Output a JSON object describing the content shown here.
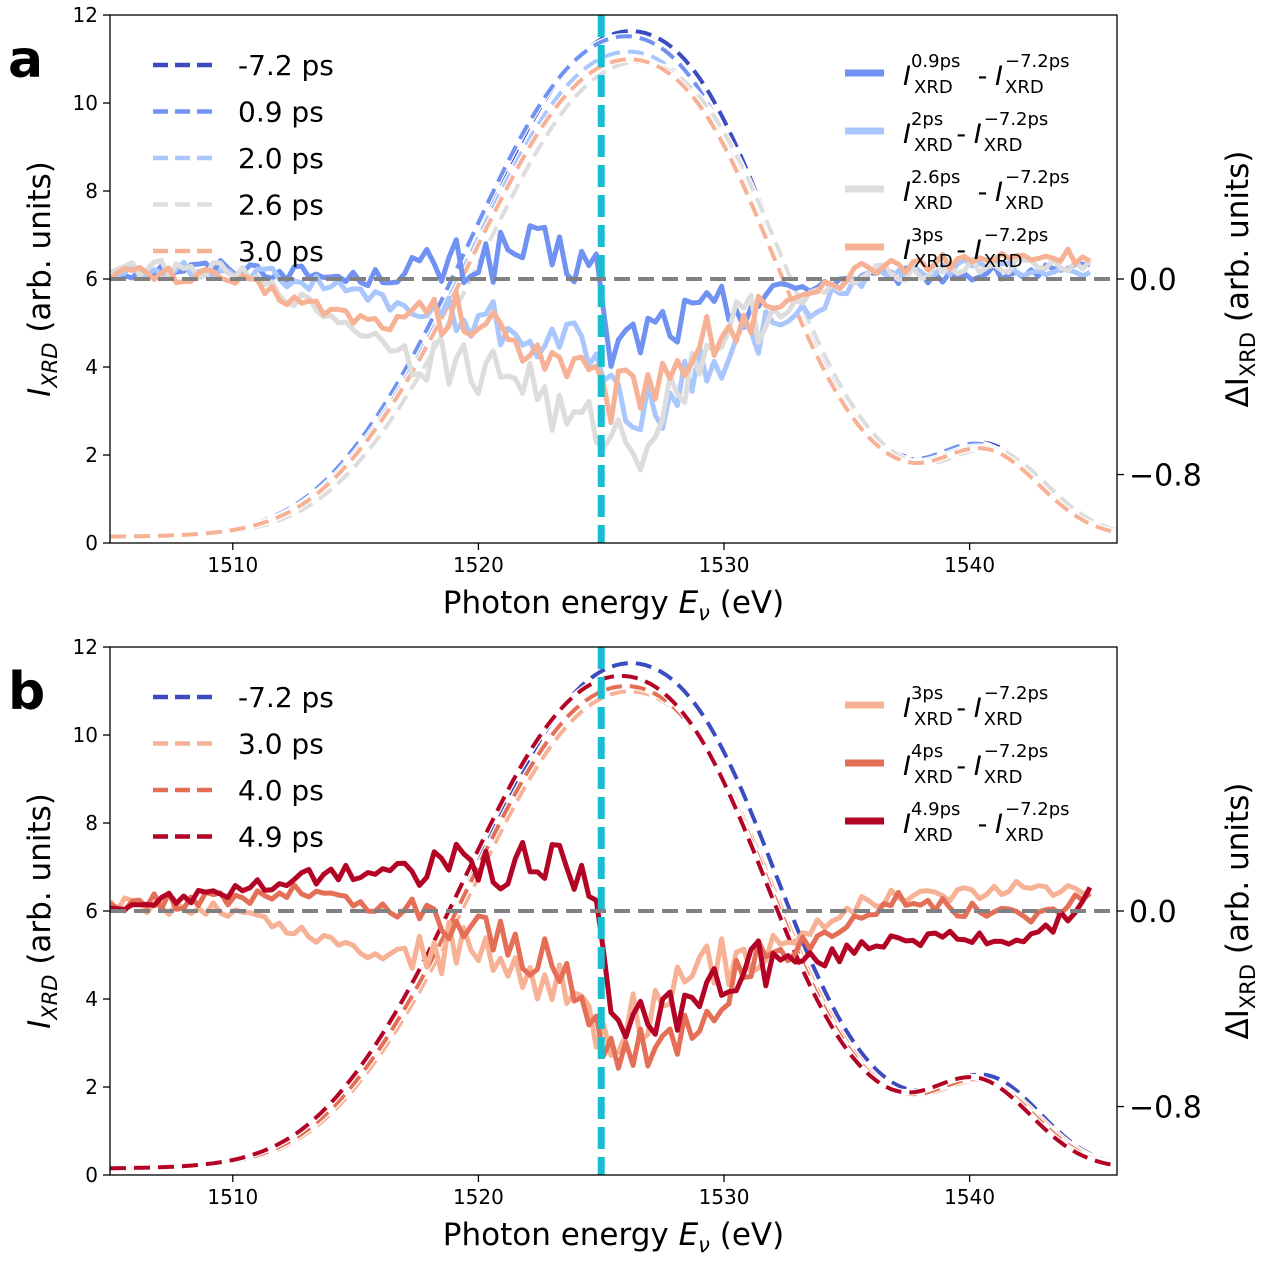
{
  "figure": {
    "colors": {
      "c72": "#3b4cc0",
      "c09": "#6f92f3",
      "c20": "#aac7fd",
      "c26": "#dddddd",
      "c30": "#f7b194",
      "c40": "#e46e56",
      "c49": "#b40426",
      "marker": "#17becf",
      "zero": "#808080"
    }
  },
  "chart_data": [
    {
      "type": "line",
      "panel_label": "a",
      "xlabel": "Photon energy Eν (eV)",
      "xlabel_main": "Photon energy ",
      "xlabel_var": "E",
      "xlabel_sub": "ν",
      "xlabel_unit": " (eV)",
      "ylabel": "IXRD (arb. units)",
      "ylabel_var": "I",
      "ylabel_sub": "XRD",
      "ylabel_unit": " (arb. units)",
      "y2label": "ΔIXRD (arb. units)",
      "y2label_var": "ΔI",
      "y2label_sub": "XRD",
      "y2label_unit": " (arb. units)",
      "xlim": [
        1505,
        1546
      ],
      "ylim": [
        0,
        12
      ],
      "y2lim": [
        -1.08,
        1.08
      ],
      "xticks": [
        1510,
        1520,
        1530,
        1540
      ],
      "xtick_labels": [
        "1510",
        "1520",
        "1530",
        "1540"
      ],
      "yticks": [
        0,
        2,
        4,
        6,
        8,
        10,
        12
      ],
      "ytick_labels": [
        "0",
        "2",
        "4",
        "6",
        "8",
        "10",
        "12"
      ],
      "y2ticks": [
        0.0,
        -0.8
      ],
      "y2tick_labels": [
        "0.0",
        "−0.8"
      ],
      "vline_x": 1525,
      "hline_y2": 0.0,
      "legend_left_position": "upper-left",
      "legend_right_position": "upper-right",
      "spectra": [
        {
          "name": "-7.2 ps",
          "label": "-7.2 ps",
          "color_key": "c72",
          "shift": 0.2,
          "scale": 1.0
        },
        {
          "name": "0.9 ps",
          "label": "0.9 ps",
          "color_key": "c09",
          "shift": 0.0,
          "scale": 0.99
        },
        {
          "name": "2.0 ps",
          "label": "2.0 ps",
          "color_key": "c20",
          "shift": 0.1,
          "scale": 0.96
        },
        {
          "name": "2.6 ps",
          "label": "2.6 ps",
          "color_key": "c26",
          "shift": 0.5,
          "scale": 0.94
        },
        {
          "name": "3.0 ps",
          "label": "3.0 ps",
          "color_key": "c30",
          "shift": 0.15,
          "scale": 0.945
        }
      ],
      "differences": [
        {
          "name": "0.9ps - -7.2ps",
          "sup1": "0.9ps",
          "color_key": "c09",
          "x": [
            1505,
            1510,
            1515,
            1518,
            1522,
            1524.8,
            1525.2,
            1527,
            1529,
            1532,
            1535,
            1540,
            1545
          ],
          "y": [
            0.03,
            0.05,
            0.0,
            0.03,
            0.12,
            0.05,
            -0.3,
            -0.2,
            -0.15,
            -0.05,
            0.0,
            0.02,
            0.03
          ]
        },
        {
          "name": "2ps - -7.2ps",
          "sup1": "2ps",
          "color_key": "c20",
          "x": [
            1505,
            1510,
            1515,
            1518,
            1521,
            1524.8,
            1525.2,
            1527,
            1530,
            1533,
            1536,
            1540,
            1545
          ],
          "y": [
            0.03,
            0.04,
            -0.05,
            -0.15,
            -0.2,
            -0.3,
            -0.45,
            -0.55,
            -0.3,
            -0.15,
            0.02,
            0.05,
            0.04
          ]
        },
        {
          "name": "2.6ps - -7.2ps",
          "sup1": "2.6ps",
          "color_key": "c26",
          "x": [
            1505,
            1510,
            1513,
            1516,
            1519,
            1522,
            1523.5,
            1525,
            1526.5,
            1528,
            1530,
            1533,
            1536,
            1540,
            1545
          ],
          "y": [
            0.05,
            0.03,
            -0.1,
            -0.25,
            -0.35,
            -0.4,
            -0.6,
            -0.6,
            -0.7,
            -0.45,
            -0.2,
            -0.1,
            0.02,
            0.05,
            0.06
          ]
        },
        {
          "name": "3ps - -7.2ps",
          "sup1": "3ps",
          "color_key": "c30",
          "x": [
            1505,
            1510,
            1513,
            1516,
            1519,
            1522,
            1524,
            1525.2,
            1527,
            1530,
            1533,
            1536,
            1540,
            1545
          ],
          "y": [
            0.03,
            0.0,
            -0.1,
            -0.18,
            -0.15,
            -0.25,
            -0.35,
            -0.5,
            -0.4,
            -0.2,
            -0.1,
            0.05,
            0.08,
            0.1
          ]
        }
      ],
      "legend_left": [
        "-7.2 ps",
        "0.9 ps",
        "2.0 ps",
        "2.6 ps",
        "3.0 ps"
      ],
      "legend_right_sup2": "−7.2ps",
      "legend_right_sub": "XRD",
      "legend_right_mid": " - "
    },
    {
      "type": "line",
      "panel_label": "b",
      "xlabel": "Photon energy Eν (eV)",
      "xlabel_main": "Photon energy ",
      "xlabel_var": "E",
      "xlabel_sub": "ν",
      "xlabel_unit": " (eV)",
      "ylabel": "IXRD (arb. units)",
      "ylabel_var": "I",
      "ylabel_sub": "XRD",
      "ylabel_unit": " (arb. units)",
      "y2label": "ΔIXRD (arb. units)",
      "y2label_var": "ΔI",
      "y2label_sub": "XRD",
      "y2label_unit": " (arb. units)",
      "xlim": [
        1505,
        1546
      ],
      "ylim": [
        0,
        12
      ],
      "y2lim": [
        -1.08,
        1.08
      ],
      "xticks": [
        1510,
        1520,
        1530,
        1540
      ],
      "xtick_labels": [
        "1510",
        "1520",
        "1530",
        "1540"
      ],
      "yticks": [
        0,
        2,
        4,
        6,
        8,
        10,
        12
      ],
      "ytick_labels": [
        "0",
        "2",
        "4",
        "6",
        "8",
        "10",
        "12"
      ],
      "y2ticks": [
        0.0,
        -0.8
      ],
      "y2tick_labels": [
        "0.0",
        "−0.8"
      ],
      "vline_x": 1525,
      "hline_y2": 0.0,
      "legend_left_position": "upper-left",
      "legend_right_position": "upper-right",
      "spectra": [
        {
          "name": "-7.2 ps",
          "label": "-7.2 ps",
          "color_key": "c72",
          "shift": 0.2,
          "scale": 1.0
        },
        {
          "name": "3.0 ps",
          "label": "3.0 ps",
          "color_key": "c30",
          "shift": 0.15,
          "scale": 0.945
        },
        {
          "name": "4.0 ps",
          "label": "4.0 ps",
          "color_key": "c40",
          "shift": 0.0,
          "scale": 0.955
        },
        {
          "name": "4.9 ps",
          "label": "4.9 ps",
          "color_key": "c49",
          "shift": -0.2,
          "scale": 0.975
        }
      ],
      "differences": [
        {
          "name": "3ps - -7.2ps",
          "sup1": "3ps",
          "color_key": "c30",
          "x": [
            1505,
            1510,
            1513,
            1516,
            1519,
            1522,
            1524,
            1525.2,
            1527,
            1530,
            1533,
            1536,
            1540,
            1545
          ],
          "y": [
            0.03,
            0.0,
            -0.1,
            -0.18,
            -0.15,
            -0.25,
            -0.35,
            -0.5,
            -0.4,
            -0.2,
            -0.1,
            0.05,
            0.08,
            0.1
          ]
        },
        {
          "name": "4ps - -7.2ps",
          "sup1": "4ps",
          "color_key": "c40",
          "x": [
            1505,
            1510,
            1513,
            1516,
            1519,
            1522,
            1524,
            1525.2,
            1527,
            1530,
            1533,
            1537,
            1540,
            1543,
            1545
          ],
          "y": [
            0.03,
            0.05,
            0.08,
            0.0,
            -0.05,
            -0.15,
            -0.35,
            -0.55,
            -0.6,
            -0.3,
            -0.15,
            0.05,
            0.0,
            -0.02,
            0.08
          ]
        },
        {
          "name": "4.9ps - -7.2ps",
          "sup1": "4.9ps",
          "color_key": "c49",
          "x": [
            1505,
            1508,
            1511,
            1514,
            1517,
            1520,
            1522,
            1524.7,
            1525.2,
            1527,
            1529,
            1531,
            1534,
            1537,
            1540,
            1543,
            1545
          ],
          "y": [
            0.02,
            0.05,
            0.1,
            0.15,
            0.17,
            0.2,
            0.17,
            0.15,
            -0.35,
            -0.5,
            -0.35,
            -0.2,
            -0.2,
            -0.1,
            -0.12,
            -0.1,
            0.08
          ]
        }
      ],
      "legend_left": [
        "-7.2 ps",
        "3.0 ps",
        "4.0 ps",
        "4.9 ps"
      ],
      "legend_right_sup2": "−7.2ps",
      "legend_right_sub": "XRD",
      "legend_right_mid": " - "
    }
  ]
}
